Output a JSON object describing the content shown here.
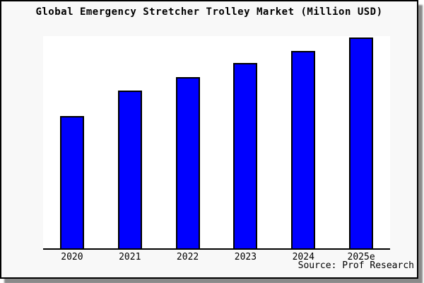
{
  "header": {
    "title": "Global Emergency Stretcher Trolley Market (Million USD)"
  },
  "footer": {
    "source": "Source: Prof Research"
  },
  "colors": {
    "bar_fill": "#0000ff",
    "bar_border": "#000000",
    "card_background": "#f8f8f8",
    "plot_background": "#ffffff",
    "axis": "#000000",
    "text": "#000000",
    "shadow": "#8a8a8a"
  },
  "chart_data": {
    "type": "bar",
    "title": "Global Emergency Stretcher Trolley Market (Million USD)",
    "categories": [
      "2020",
      "2021",
      "2022",
      "2023",
      "2024",
      "2025e"
    ],
    "values": [
      62.8,
      75.0,
      81.2,
      88.1,
      93.8,
      100
    ],
    "values_note": "No y-axis scale shown; values are relative index with 2025e = 100",
    "xlabel": "",
    "ylabel": "",
    "ylim": [
      0,
      100.7
    ],
    "grid": false,
    "legend": false,
    "y_axis_visible": false,
    "source": "Source: Prof Research"
  }
}
